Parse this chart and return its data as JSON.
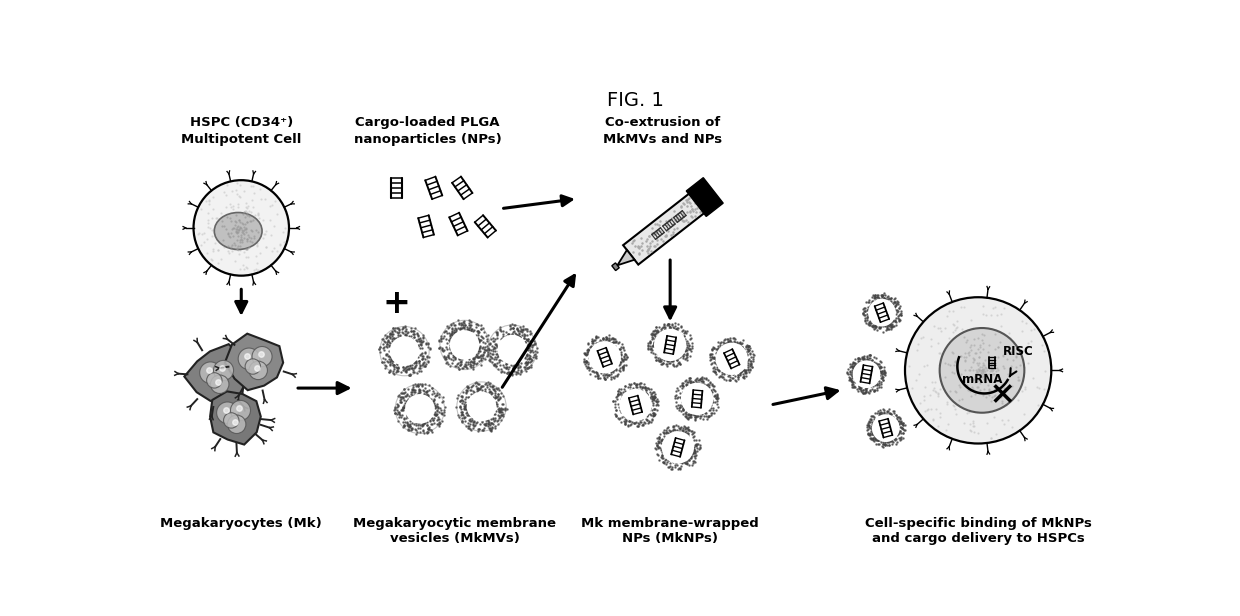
{
  "title": "FIG. 1",
  "title_fontsize": 14,
  "background_color": "#ffffff",
  "labels": {
    "col1_top": "HSPC (CD34⁺)\nMultipotent Cell",
    "col2_top": "Cargo-loaded PLGA\nnanoparticles (NPs)",
    "col3_top": "Co-extrusion of\nMkMVs and NPs",
    "col1_bot": "Megakaryocytes (Mk)",
    "col2_bot": "Megakaryocytic membrane\nvesicles (MkMVs)",
    "col3_bot": "Mk membrane-wrapped\nNPs (MkNPs)",
    "col4_bot": "Cell-specific binding of MkNPs\nand cargo delivery to HSPCs"
  },
  "label_fontsize": 9.5,
  "colors": {
    "black": "#000000",
    "dark_gray": "#333333",
    "medium_gray": "#777777",
    "light_gray": "#aaaaaa",
    "very_light_gray": "#cccccc",
    "white": "#ffffff"
  }
}
